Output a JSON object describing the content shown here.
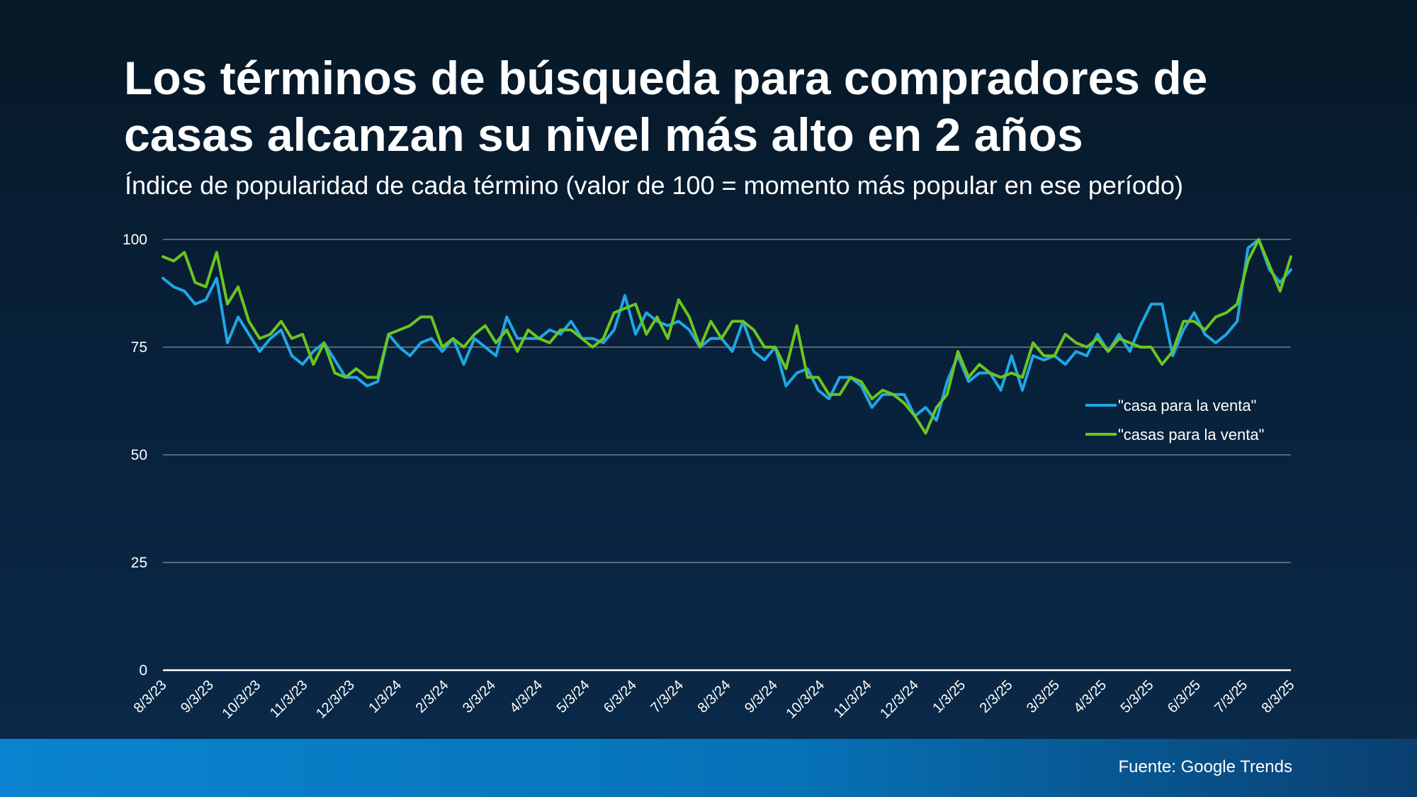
{
  "title": "Los términos de búsqueda para compradores de casas alcanzan su nivel más alto en 2 años",
  "subtitle": "Índice de popularidad de cada término (valor de 100 = momento más popular en ese período)",
  "source": "Fuente: Google Trends",
  "colors": {
    "casa": "#1ea7e6",
    "casas": "#6cc51f",
    "grid": "#8893a0",
    "axis": "#ffffff"
  },
  "chart_data": {
    "type": "line",
    "ylim": [
      0,
      100
    ],
    "yticks": [
      0,
      25,
      50,
      75,
      100
    ],
    "grid": true,
    "legend_position": "right",
    "xtick_labels": [
      "8/3/23",
      "9/3/23",
      "10/3/23",
      "11/3/23",
      "12/3/23",
      "1/3/24",
      "2/3/24",
      "3/3/24",
      "4/3/24",
      "5/3/24",
      "6/3/24",
      "7/3/24",
      "8/3/24",
      "9/3/24",
      "10/3/24",
      "11/3/24",
      "12/3/24",
      "1/3/25",
      "2/3/25",
      "3/3/25",
      "4/3/25",
      "5/3/25",
      "6/3/25",
      "7/3/25",
      "8/3/25"
    ],
    "series": [
      {
        "name": "\"casa para la venta\"",
        "color_key": "casa",
        "values": [
          91,
          89,
          88,
          85,
          86,
          91,
          76,
          82,
          78,
          74,
          77,
          79,
          73,
          71,
          74,
          76,
          72,
          68,
          68,
          66,
          67,
          78,
          75,
          73,
          76,
          77,
          74,
          77,
          71,
          77,
          75,
          73,
          82,
          77,
          77,
          77,
          79,
          78,
          81,
          77,
          77,
          76,
          79,
          87,
          78,
          83,
          81,
          80,
          81,
          79,
          75,
          77,
          77,
          74,
          81,
          74,
          72,
          75,
          66,
          69,
          70,
          65,
          63,
          68,
          68,
          66,
          61,
          64,
          64,
          64,
          59,
          61,
          58,
          67,
          73,
          67,
          69,
          69,
          65,
          73,
          65,
          73,
          72,
          73,
          71,
          74,
          73,
          78,
          74,
          78,
          74,
          80,
          85,
          85,
          73,
          79,
          83,
          78,
          76,
          78,
          81,
          98,
          100,
          93,
          90,
          93
        ],
        "dashes_in_x_count_hint": "weekly"
      },
      {
        "name": "\"casas para la venta\"",
        "color_key": "casas",
        "values": [
          96,
          95,
          97,
          90,
          89,
          97,
          85,
          89,
          81,
          77,
          78,
          81,
          77,
          78,
          71,
          76,
          69,
          68,
          70,
          68,
          68,
          78,
          79,
          80,
          82,
          82,
          75,
          77,
          75,
          78,
          80,
          76,
          79,
          74,
          79,
          77,
          76,
          79,
          79,
          77,
          75,
          77,
          83,
          84,
          85,
          78,
          82,
          77,
          86,
          82,
          75,
          81,
          77,
          81,
          81,
          79,
          75,
          75,
          70,
          80,
          68,
          68,
          64,
          64,
          68,
          67,
          63,
          65,
          64,
          62,
          59,
          55,
          61,
          64,
          74,
          68,
          71,
          69,
          68,
          69,
          68,
          76,
          73,
          73,
          78,
          76,
          75,
          77,
          74,
          77,
          76,
          75,
          75,
          71,
          74,
          81,
          81,
          79,
          82,
          83,
          85,
          95,
          100,
          94,
          88,
          96
        ]
      }
    ]
  }
}
